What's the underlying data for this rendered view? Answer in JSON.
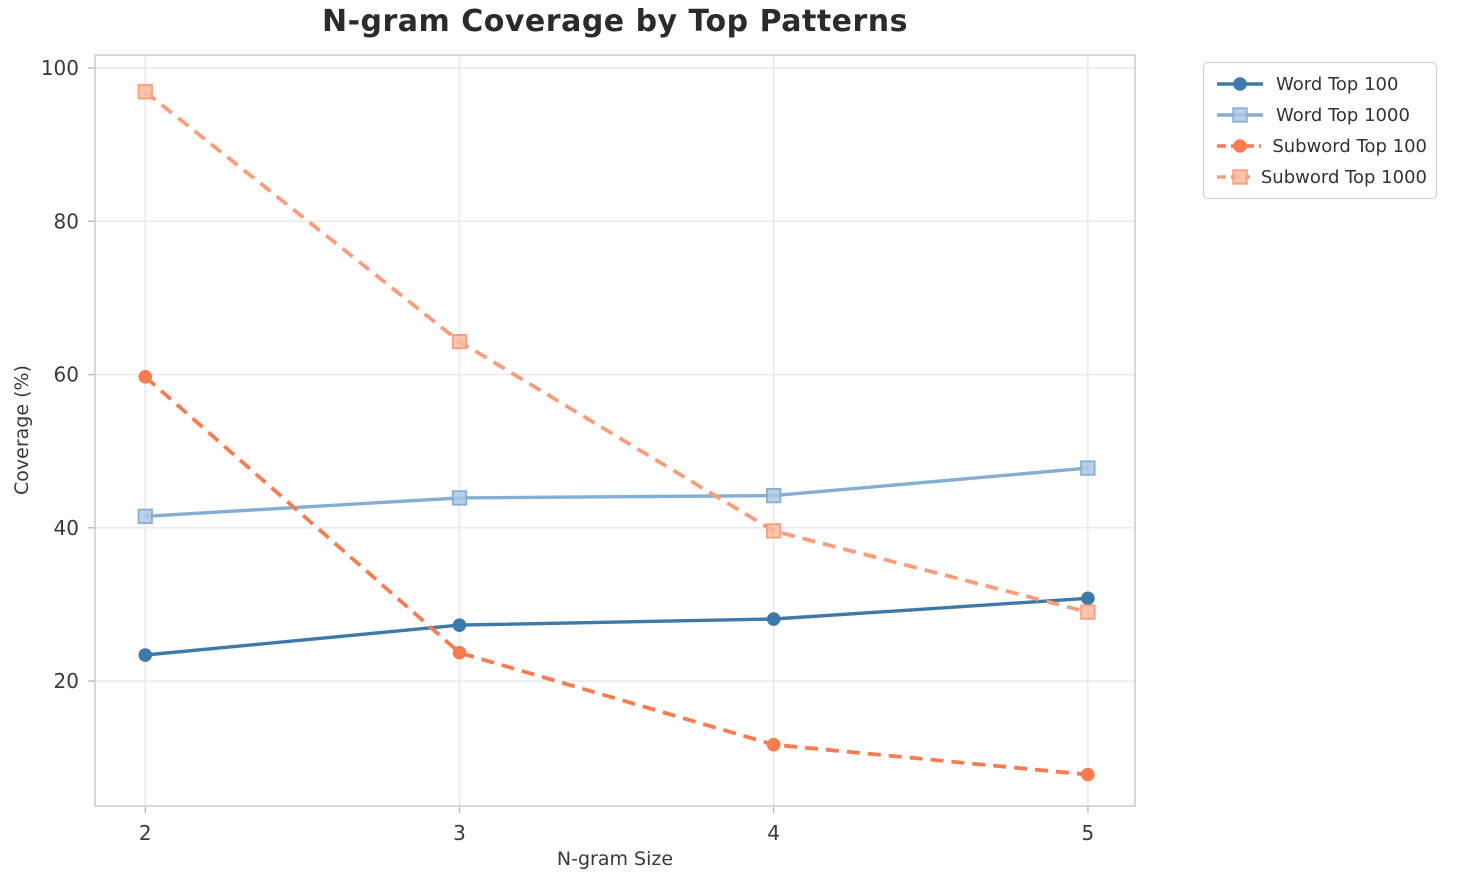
{
  "chart_data": {
    "type": "line",
    "title": "N-gram Coverage by Top Patterns",
    "xlabel": "N-gram Size",
    "ylabel": "Coverage (%)",
    "x": [
      2,
      3,
      4,
      5
    ],
    "xticks": [
      "2",
      "3",
      "4",
      "5"
    ],
    "yticks": [
      20,
      40,
      60,
      80,
      100
    ],
    "xlim": [
      1.84,
      5.15
    ],
    "ylim": [
      3.7,
      101.7
    ],
    "grid": true,
    "legend_position": "outside-upper-right",
    "series": [
      {
        "name": "Word Top 100",
        "color": "#3d79a9",
        "fill": "#3d79a9",
        "linestyle": "solid",
        "marker": "circle",
        "values": [
          23.4,
          27.3,
          28.1,
          30.8
        ]
      },
      {
        "name": "Word Top 1000",
        "color": "#85aed3",
        "fill": "#aec8e2",
        "linestyle": "solid",
        "marker": "square",
        "values": [
          41.5,
          43.9,
          44.2,
          47.8
        ]
      },
      {
        "name": "Subword Top 100",
        "color": "#f97c50",
        "fill": "#f97c50",
        "linestyle": "dashed",
        "marker": "circle",
        "values": [
          59.7,
          23.7,
          11.7,
          7.8
        ]
      },
      {
        "name": "Subword Top 1000",
        "color": "#fb9d7c",
        "fill": "#fcb89f",
        "linestyle": "dashed",
        "marker": "square",
        "values": [
          96.9,
          64.3,
          39.6,
          29.0
        ]
      }
    ],
    "style": {
      "grid_color": "#e8e8e8",
      "spine_color": "#cccccc",
      "tick_color": "#bbbbbb",
      "tick_label_color": "#3a3a3a",
      "title_color": "#2b2b2b"
    }
  }
}
